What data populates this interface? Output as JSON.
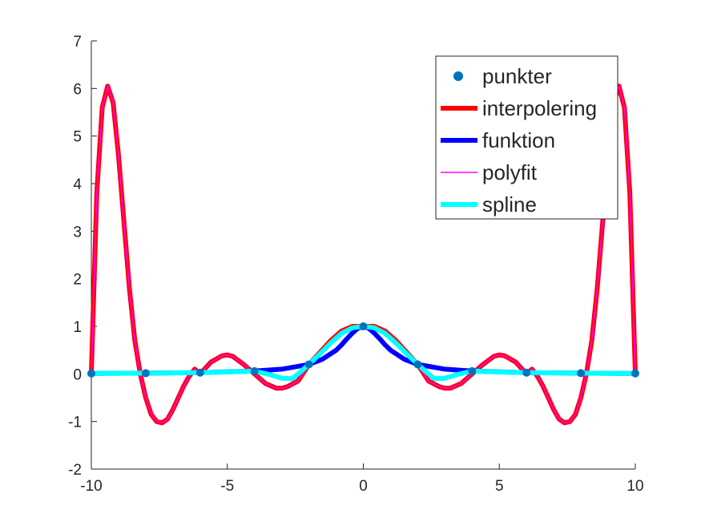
{
  "chart_data": {
    "type": "line",
    "title": "",
    "xlabel": "",
    "ylabel": "",
    "xlim": [
      -10,
      10
    ],
    "ylim": [
      -2,
      7
    ],
    "xticks": [
      -10,
      -5,
      0,
      5,
      10
    ],
    "yticks": [
      -2,
      -1,
      0,
      1,
      2,
      3,
      4,
      5,
      6,
      7
    ],
    "xtick_labels": [
      "-10",
      "-5",
      "0",
      "5",
      "10"
    ],
    "ytick_labels": [
      "-2",
      "-1",
      "0",
      "1",
      "2",
      "3",
      "4",
      "5",
      "6",
      "7"
    ],
    "grid": false,
    "legend_position": "top-right",
    "series": [
      {
        "name": "punkter",
        "kind": "markers",
        "color": "#0072BD",
        "x": [
          -10,
          -8,
          -6,
          -4,
          -2,
          0,
          2,
          4,
          6,
          8,
          10
        ],
        "y": [
          0.0099,
          0.0154,
          0.027,
          0.0588,
          0.2,
          1.0,
          0.2,
          0.0588,
          0.027,
          0.0154,
          0.0099
        ]
      },
      {
        "name": "interpolering",
        "kind": "line",
        "color": "#FF0000",
        "x": [
          -10,
          -9.8,
          -9.6,
          -9.4,
          -9.2,
          -9,
          -8.8,
          -8.6,
          -8.4,
          -8.2,
          -8,
          -7.8,
          -7.6,
          -7.4,
          -7.2,
          -7,
          -6.8,
          -6.6,
          -6.4,
          -6.2,
          -6,
          -5.6,
          -5.2,
          -5,
          -4.8,
          -4.4,
          -4,
          -3.6,
          -3.2,
          -3,
          -2.8,
          -2.4,
          -2,
          -1.6,
          -1.2,
          -0.8,
          -0.4,
          0,
          0.4,
          0.8,
          1.2,
          1.6,
          2,
          2.4,
          2.8,
          3,
          3.2,
          3.6,
          4,
          4.4,
          4.8,
          5,
          5.2,
          5.6,
          6,
          6.2,
          6.4,
          6.6,
          6.8,
          7,
          7.2,
          7.4,
          7.6,
          7.8,
          8,
          8.2,
          8.4,
          8.6,
          8.8,
          9,
          9.2,
          9.4,
          9.6,
          9.8,
          10
        ],
        "y": [
          0.01,
          3.8,
          5.6,
          6.05,
          5.7,
          4.6,
          3.2,
          1.8,
          0.7,
          0.0,
          -0.5,
          -0.85,
          -1.0,
          -1.03,
          -0.95,
          -0.75,
          -0.5,
          -0.25,
          -0.05,
          0.1,
          0.0,
          0.25,
          0.38,
          0.4,
          0.37,
          0.2,
          0.0,
          -0.2,
          -0.3,
          -0.3,
          -0.27,
          -0.15,
          0.2,
          0.45,
          0.7,
          0.9,
          1.0,
          1.0,
          1.0,
          0.9,
          0.7,
          0.45,
          0.2,
          -0.15,
          -0.27,
          -0.3,
          -0.3,
          -0.2,
          0.0,
          0.2,
          0.37,
          0.4,
          0.38,
          0.25,
          0.0,
          0.1,
          -0.05,
          -0.25,
          -0.5,
          -0.75,
          -0.95,
          -1.03,
          -1.0,
          -0.85,
          -0.5,
          0.0,
          0.7,
          1.8,
          3.2,
          4.6,
          5.7,
          6.05,
          5.6,
          3.8,
          0.01
        ]
      },
      {
        "name": "funktion",
        "kind": "line",
        "color": "#0000FF",
        "x": [
          -10,
          -8,
          -6,
          -4,
          -3,
          -2,
          -1.5,
          -1,
          -0.8,
          -0.6,
          -0.4,
          -0.2,
          0,
          0.2,
          0.4,
          0.6,
          0.8,
          1,
          1.5,
          2,
          3,
          4,
          6,
          8,
          10
        ],
        "y": [
          0.0099,
          0.0154,
          0.027,
          0.0588,
          0.1,
          0.2,
          0.31,
          0.5,
          0.61,
          0.74,
          0.86,
          0.96,
          1.0,
          0.96,
          0.86,
          0.74,
          0.61,
          0.5,
          0.31,
          0.2,
          0.1,
          0.0588,
          0.027,
          0.0154,
          0.0099
        ]
      },
      {
        "name": "polyfit",
        "kind": "line",
        "color": "#FF00FF",
        "x": [
          -10,
          -9.8,
          -9.6,
          -9.4,
          -9.2,
          -9,
          -8.8,
          -8.6,
          -8.4,
          -8.2,
          -8,
          -7.8,
          -7.6,
          -7.4,
          -7.2,
          -7,
          -6.8,
          -6.6,
          -6.4,
          -6.2,
          -6,
          -5.6,
          -5.2,
          -5,
          -4.8,
          -4.4,
          -4,
          -3.6,
          -3.2,
          -3,
          -2.8,
          -2.4,
          -2,
          -1.6,
          -1.2,
          -0.8,
          -0.4,
          0,
          0.4,
          0.8,
          1.2,
          1.6,
          2,
          2.4,
          2.8,
          3,
          3.2,
          3.6,
          4,
          4.4,
          4.8,
          5,
          5.2,
          5.6,
          6,
          6.2,
          6.4,
          6.6,
          6.8,
          7,
          7.2,
          7.4,
          7.6,
          7.8,
          8,
          8.2,
          8.4,
          8.6,
          8.8,
          9,
          9.2,
          9.4,
          9.6,
          9.8,
          10
        ],
        "y": [
          0.01,
          3.8,
          5.6,
          6.05,
          5.7,
          4.6,
          3.2,
          1.8,
          0.7,
          0.0,
          -0.5,
          -0.85,
          -1.0,
          -1.03,
          -0.95,
          -0.75,
          -0.5,
          -0.25,
          -0.05,
          0.1,
          0.0,
          0.25,
          0.38,
          0.4,
          0.37,
          0.2,
          0.0,
          -0.2,
          -0.3,
          -0.3,
          -0.27,
          -0.15,
          0.2,
          0.45,
          0.7,
          0.9,
          1.0,
          1.0,
          1.0,
          0.9,
          0.7,
          0.45,
          0.2,
          -0.15,
          -0.27,
          -0.3,
          -0.3,
          -0.2,
          0.0,
          0.2,
          0.37,
          0.4,
          0.38,
          0.25,
          0.0,
          0.1,
          -0.05,
          -0.25,
          -0.5,
          -0.75,
          -0.95,
          -1.03,
          -1.0,
          -0.85,
          -0.5,
          0.0,
          0.7,
          1.8,
          3.2,
          4.6,
          5.7,
          6.05,
          5.6,
          3.8,
          0.01
        ]
      },
      {
        "name": "spline",
        "kind": "line",
        "color": "#00FFFF",
        "x": [
          -10,
          -9,
          -8,
          -7,
          -6,
          -5,
          -4,
          -3.4,
          -3,
          -2.6,
          -2,
          -1.6,
          -1.2,
          -0.8,
          -0.4,
          0,
          0.4,
          0.8,
          1.2,
          1.6,
          2,
          2.6,
          3,
          3.4,
          4,
          5,
          6,
          7,
          8,
          9,
          10
        ],
        "y": [
          0.0099,
          0.012,
          0.0154,
          0.02,
          0.027,
          0.04,
          0.0588,
          -0.02,
          -0.09,
          -0.1,
          0.2,
          0.42,
          0.65,
          0.85,
          0.97,
          1.0,
          0.97,
          0.85,
          0.65,
          0.42,
          0.2,
          -0.1,
          -0.09,
          -0.02,
          0.0588,
          0.04,
          0.027,
          0.02,
          0.0154,
          0.012,
          0.0099
        ]
      }
    ]
  }
}
